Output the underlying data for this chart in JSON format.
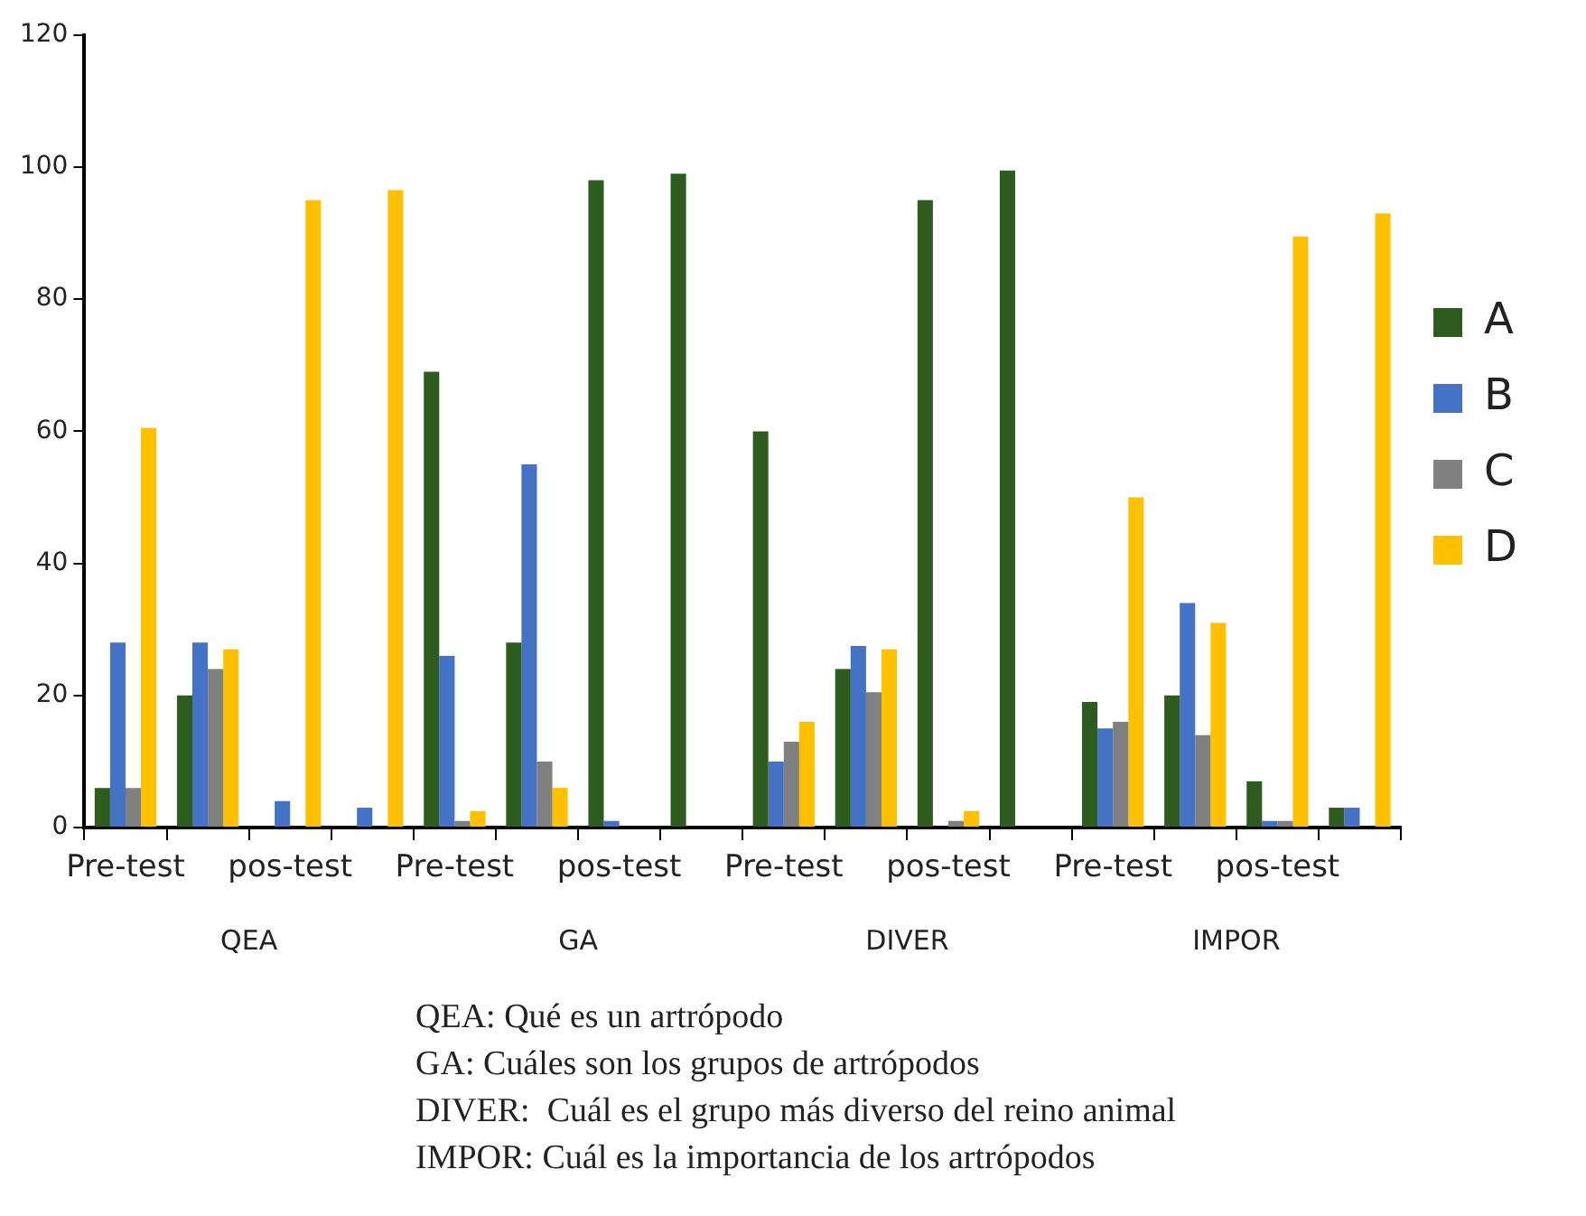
{
  "chart_data": {
    "type": "bar",
    "categories": [
      "Pre-test",
      null,
      "pos-test",
      null,
      "Pre-test",
      null,
      "pos-test",
      null,
      "Pre-test",
      null,
      "pos-test",
      null,
      "Pre-test",
      null,
      "pos-test",
      null
    ],
    "series": [
      {
        "name": "A",
        "color": "#2e5b1e",
        "values": [
          6,
          20,
          null,
          null,
          69,
          28,
          98,
          99,
          60,
          24,
          95,
          99.5,
          19,
          20,
          7,
          3
        ]
      },
      {
        "name": "B",
        "color": "#4472c4",
        "values": [
          28,
          28,
          4,
          3,
          26,
          55,
          1,
          null,
          10,
          27.5,
          null,
          null,
          15,
          34,
          1,
          3
        ]
      },
      {
        "name": "C",
        "color": "#808080",
        "values": [
          6,
          24,
          null,
          null,
          1,
          10,
          null,
          null,
          13,
          20.5,
          1,
          null,
          16,
          14,
          1,
          null
        ]
      },
      {
        "name": "D",
        "color": "#ffc000",
        "values": [
          60.5,
          27,
          95,
          96.5,
          2.5,
          6,
          null,
          null,
          16,
          27,
          2.5,
          null,
          50,
          31,
          89.5,
          93
        ]
      }
    ],
    "ylim": [
      0,
      120
    ],
    "yticks": [
      0,
      20,
      40,
      60,
      80,
      100,
      120
    ],
    "grid": false,
    "legend": "right",
    "annotations": [
      "QEA",
      "GA",
      "DIVER",
      "IMPOR",
      "QEA: Qué es un artrópodo",
      "GA: Cuáles son los grupos de artrópodos",
      "DIVER:  Cuál es el grupo más diverso del reino animal",
      "IMPOR: Cuál es la importancia de los artrópodos"
    ]
  }
}
